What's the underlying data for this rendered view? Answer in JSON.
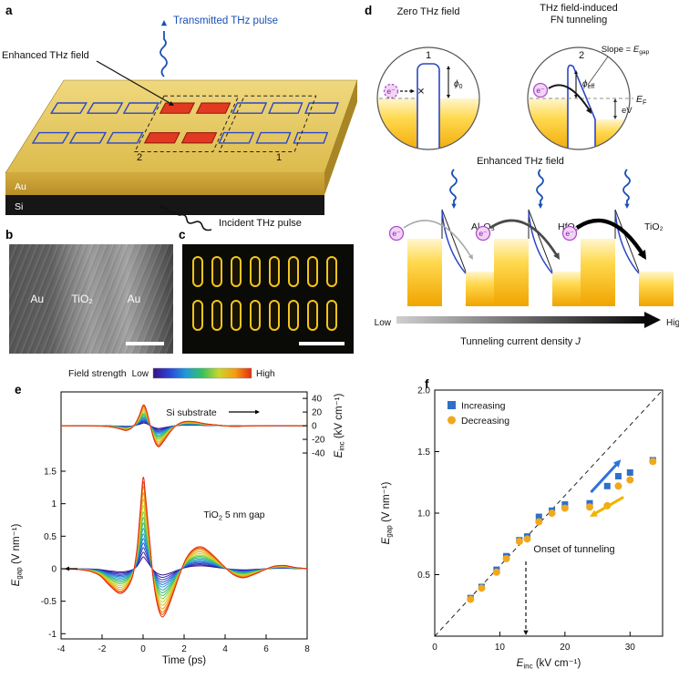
{
  "panel_labels": {
    "a": "a",
    "b": "b",
    "c": "c",
    "d": "d",
    "e": "e",
    "f": "f"
  },
  "panel_a": {
    "transmitted": "Transmitted THz pulse",
    "enhanced": "Enhanced THz field",
    "incident": "Incident THz pulse",
    "region_1": "1",
    "region_2": "2",
    "au": "Au",
    "si": "Si",
    "pulse_blue": "#1a50b4",
    "antenna_blue": "#2b46c8",
    "antenna_red": "#e23a22"
  },
  "panel_b": {
    "au_left": "Au",
    "tio2": "TiO₂",
    "au_right": "Au"
  },
  "panel_c": {
    "rows": 2,
    "cols": 8,
    "outline_color": "#f2c41d"
  },
  "panel_d": {
    "title_zero": "Zero THz field",
    "title_fn_1": "THz field-induced",
    "title_fn_2": "FN tunneling",
    "num1": "1",
    "num2": "2",
    "slope_parts": [
      {
        "t": "Slope = "
      },
      {
        "t": "E",
        "it": 1
      },
      {
        "t": "gap",
        "sub": 1
      }
    ],
    "phi0_parts": [
      {
        "t": "ϕ",
        "it": 1
      },
      {
        "t": "0",
        "sub": 1
      }
    ],
    "phieff_parts": [
      {
        "t": "ϕ",
        "it": 1
      },
      {
        "t": "eff",
        "sub": 1
      }
    ],
    "ef_parts": [
      {
        "t": "E",
        "it": 1
      },
      {
        "t": "F",
        "sub": 1
      }
    ],
    "ev": "eV",
    "electron": "e⁻",
    "cross": "✕",
    "enhanced_title": "Enhanced THz field",
    "materials": [
      "Al₂O₃",
      "HfO₂",
      "TiO₂"
    ],
    "arrow_low": "Low",
    "arrow_high": "High",
    "current_label_parts": [
      {
        "t": "Tunneling current density "
      },
      {
        "t": "J",
        "it": 1
      }
    ]
  },
  "chart_data": [
    {
      "type": "line",
      "panel": "e",
      "xlabel": "Time (ps)",
      "xlim": [
        -4,
        8
      ],
      "ylim_left": [
        -1.05,
        1.6
      ],
      "ylim_right": [
        -45,
        45
      ],
      "ylabel_left_parts": [
        {
          "t": "E",
          "it": 1
        },
        {
          "t": "gap",
          "sub": 1
        },
        {
          "t": " (V nm⁻¹)"
        }
      ],
      "ylabel_right_parts": [
        {
          "t": "E",
          "it": 1
        },
        {
          "t": "inc",
          "sub": 1
        },
        {
          "t": " (kV cm⁻¹)"
        }
      ],
      "x_ticks": [
        "-4",
        "-2",
        "0",
        "2",
        "4",
        "6",
        "8"
      ],
      "left_ticks": [
        "-1",
        "-0.5",
        "0",
        "0.5",
        "1",
        "1.5"
      ],
      "right_ticks": [
        "40",
        "20",
        "0",
        "-20",
        "-40"
      ],
      "colorbar": {
        "title": "Field strength",
        "low": "Low",
        "high": "High"
      },
      "colormap": [
        "#3a0f86",
        "#2b44d4",
        "#1f9ad8",
        "#35c25e",
        "#c9d62c",
        "#f59c12",
        "#e22c12"
      ],
      "ann_si": "Si substrate",
      "ann_gap_parts": [
        {
          "t": "TiO"
        },
        {
          "t": "2",
          "sub": 1
        },
        {
          "t": " 5 nm gap"
        }
      ],
      "scales": [
        0.13,
        0.18,
        0.23,
        0.28,
        0.33,
        0.38,
        0.44,
        0.5,
        0.56,
        0.62,
        0.69,
        0.76,
        0.83,
        0.9,
        0.95,
        1.0
      ],
      "gap_wave": [
        [
          -4,
          0
        ],
        [
          -3.2,
          -0.01
        ],
        [
          -2.6,
          -0.04
        ],
        [
          -2.1,
          -0.11
        ],
        [
          -1.6,
          -0.27
        ],
        [
          -1.15,
          -0.38
        ],
        [
          -0.8,
          -0.31
        ],
        [
          -0.5,
          -0.1
        ],
        [
          -0.3,
          0.3
        ],
        [
          -0.15,
          0.85
        ],
        [
          0,
          1.4
        ],
        [
          0.12,
          1.12
        ],
        [
          0.3,
          0.5
        ],
        [
          0.5,
          -0.18
        ],
        [
          0.7,
          -0.56
        ],
        [
          0.92,
          -0.74
        ],
        [
          1.15,
          -0.65
        ],
        [
          1.45,
          -0.4
        ],
        [
          1.75,
          -0.12
        ],
        [
          2.1,
          0.16
        ],
        [
          2.5,
          0.31
        ],
        [
          2.9,
          0.33
        ],
        [
          3.4,
          0.21
        ],
        [
          3.9,
          0.05
        ],
        [
          4.4,
          -0.09
        ],
        [
          4.9,
          -0.14
        ],
        [
          5.4,
          -0.09
        ],
        [
          5.9,
          -0.02
        ],
        [
          6.4,
          0.04
        ],
        [
          6.9,
          0.05
        ],
        [
          7.4,
          0.02
        ],
        [
          8,
          0
        ]
      ],
      "si_wave": [
        [
          -4,
          0
        ],
        [
          -2.6,
          0
        ],
        [
          -1.8,
          -1
        ],
        [
          -1.2,
          -4
        ],
        [
          -0.8,
          -7
        ],
        [
          -0.45,
          0
        ],
        [
          -0.2,
          14
        ],
        [
          0,
          30
        ],
        [
          0.15,
          24
        ],
        [
          0.35,
          0
        ],
        [
          0.55,
          -22
        ],
        [
          0.75,
          -31
        ],
        [
          1,
          -23
        ],
        [
          1.3,
          -10
        ],
        [
          1.6,
          0
        ],
        [
          2,
          6
        ],
        [
          2.5,
          6
        ],
        [
          3,
          3
        ],
        [
          3.6,
          1
        ],
        [
          4.4,
          -1
        ],
        [
          5.5,
          0
        ],
        [
          8,
          0
        ]
      ]
    },
    {
      "type": "scatter",
      "panel": "f",
      "xlabel_parts": [
        {
          "t": "E",
          "it": 1
        },
        {
          "t": "inc",
          "sub": 1
        },
        {
          "t": " (kV cm⁻¹)"
        }
      ],
      "ylabel_parts": [
        {
          "t": "E",
          "it": 1
        },
        {
          "t": "gap",
          "sub": 1
        },
        {
          "t": " (V nm⁻¹)"
        }
      ],
      "xlim": [
        0,
        35
      ],
      "ylim": [
        0,
        2
      ],
      "x_ticks": [
        "0",
        "10",
        "20",
        "30"
      ],
      "y_ticks": [
        "0.5",
        "1.0",
        "1.5",
        "2.0"
      ],
      "annotation": "Onset of tunneling",
      "onset_x": 14,
      "dashed_line": {
        "x": [
          0,
          35
        ],
        "y": [
          0,
          2.0
        ]
      },
      "series": [
        {
          "name": "Increasing",
          "marker": "square",
          "color": "#2e6fc8",
          "points": [
            [
              5.5,
              0.31
            ],
            [
              7.2,
              0.4
            ],
            [
              9.5,
              0.54
            ],
            [
              11,
              0.65
            ],
            [
              13,
              0.78
            ],
            [
              14.2,
              0.81
            ],
            [
              16,
              0.97
            ],
            [
              18,
              1.02
            ],
            [
              20,
              1.07
            ],
            [
              23.8,
              1.08
            ],
            [
              26.5,
              1.22
            ],
            [
              28.2,
              1.3
            ],
            [
              30,
              1.33
            ],
            [
              33.5,
              1.43
            ]
          ]
        },
        {
          "name": "Decreasing",
          "marker": "circle",
          "color": "#f0a81e",
          "points": [
            [
              5.5,
              0.3
            ],
            [
              7.2,
              0.39
            ],
            [
              9.5,
              0.52
            ],
            [
              11,
              0.63
            ],
            [
              13,
              0.77
            ],
            [
              14.2,
              0.79
            ],
            [
              16,
              0.93
            ],
            [
              18,
              1.0
            ],
            [
              20,
              1.04
            ],
            [
              23.8,
              1.05
            ],
            [
              26.5,
              1.06
            ],
            [
              28.2,
              1.22
            ],
            [
              30,
              1.27
            ],
            [
              33.5,
              1.42
            ]
          ]
        }
      ]
    }
  ]
}
